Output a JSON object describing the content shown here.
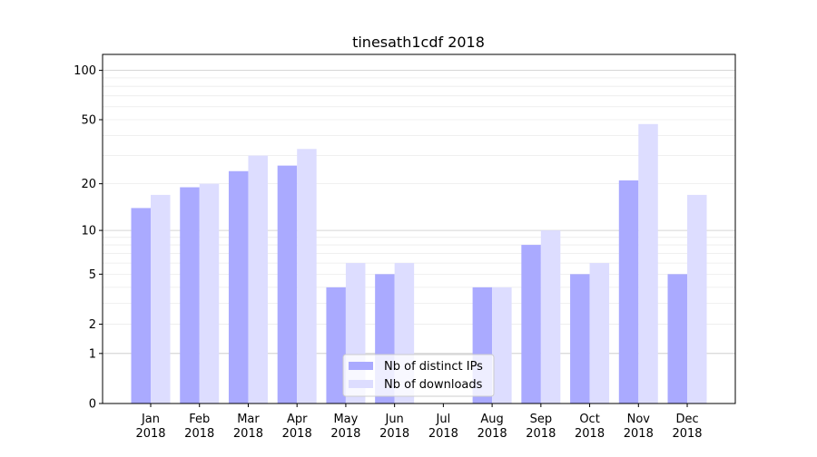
{
  "chart_data": {
    "type": "bar",
    "title": "tinesath1cdf 2018",
    "xlabel": "",
    "ylabel": "",
    "yscale": "log(1+y)",
    "ylim": [
      0,
      125
    ],
    "yticks": [
      0,
      1,
      2,
      5,
      10,
      20,
      50,
      100
    ],
    "grid": true,
    "legend_position": "bottom-center",
    "categories": [
      "Jan\n2018",
      "Feb\n2018",
      "Mar\n2018",
      "Apr\n2018",
      "May\n2018",
      "Jun\n2018",
      "Jul\n2018",
      "Aug\n2018",
      "Sep\n2018",
      "Oct\n2018",
      "Nov\n2018",
      "Dec\n2018"
    ],
    "series": [
      {
        "name": "Nb of distinct IPs",
        "color": "#aaaaff",
        "values": [
          14,
          19,
          24,
          26,
          4,
          5,
          0,
          4,
          8,
          5,
          21,
          5
        ]
      },
      {
        "name": "Nb of downloads",
        "color": "#ddddff",
        "values": [
          17,
          20,
          30,
          33,
          6,
          6,
          0,
          4,
          10,
          6,
          47,
          17
        ]
      }
    ]
  }
}
